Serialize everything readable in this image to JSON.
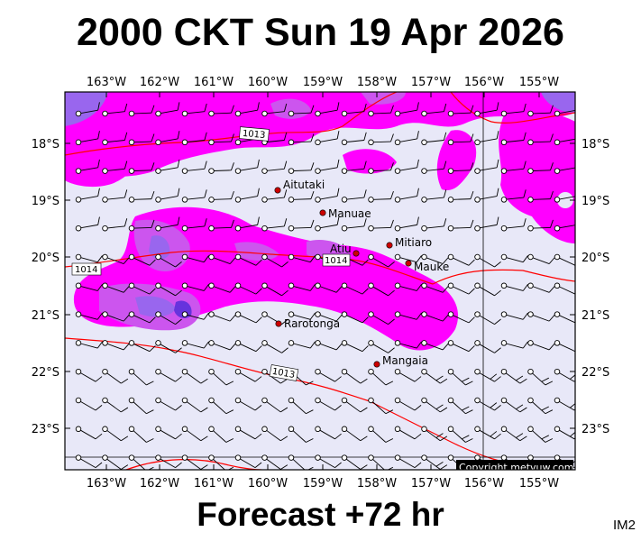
{
  "title": "2000 CKT Sun 19 Apr 2026",
  "footer": "Forecast +72 hr",
  "corner_code": "IM2",
  "copyright": "Copyright metvuw.com",
  "colors": {
    "background": "#e8e8f8",
    "rain_light": "#ff00ff",
    "rain_medium": "#cc55ee",
    "rain_heavy": "#9966ee",
    "rain_very_heavy": "#6633dd",
    "isobar": "#ff0000",
    "grid": "#000000",
    "town_marker": "#cc0000"
  },
  "longitude_labels": [
    "163°W",
    "162°W",
    "161°W",
    "160°W",
    "159°W",
    "158°W",
    "157°W",
    "156°W",
    "155°W"
  ],
  "latitude_labels": [
    "18°S",
    "19°S",
    "20°S",
    "21°S",
    "22°S",
    "23°S"
  ],
  "isobar_labels": [
    "1013",
    "1014",
    "1014",
    "1013"
  ],
  "towns": [
    {
      "name": "Aitutaki"
    },
    {
      "name": "Manuae"
    },
    {
      "name": "Atiu"
    },
    {
      "name": "Mitiaro"
    },
    {
      "name": "Mauke"
    },
    {
      "name": "Rarotonga"
    },
    {
      "name": "Mangaia"
    }
  ]
}
